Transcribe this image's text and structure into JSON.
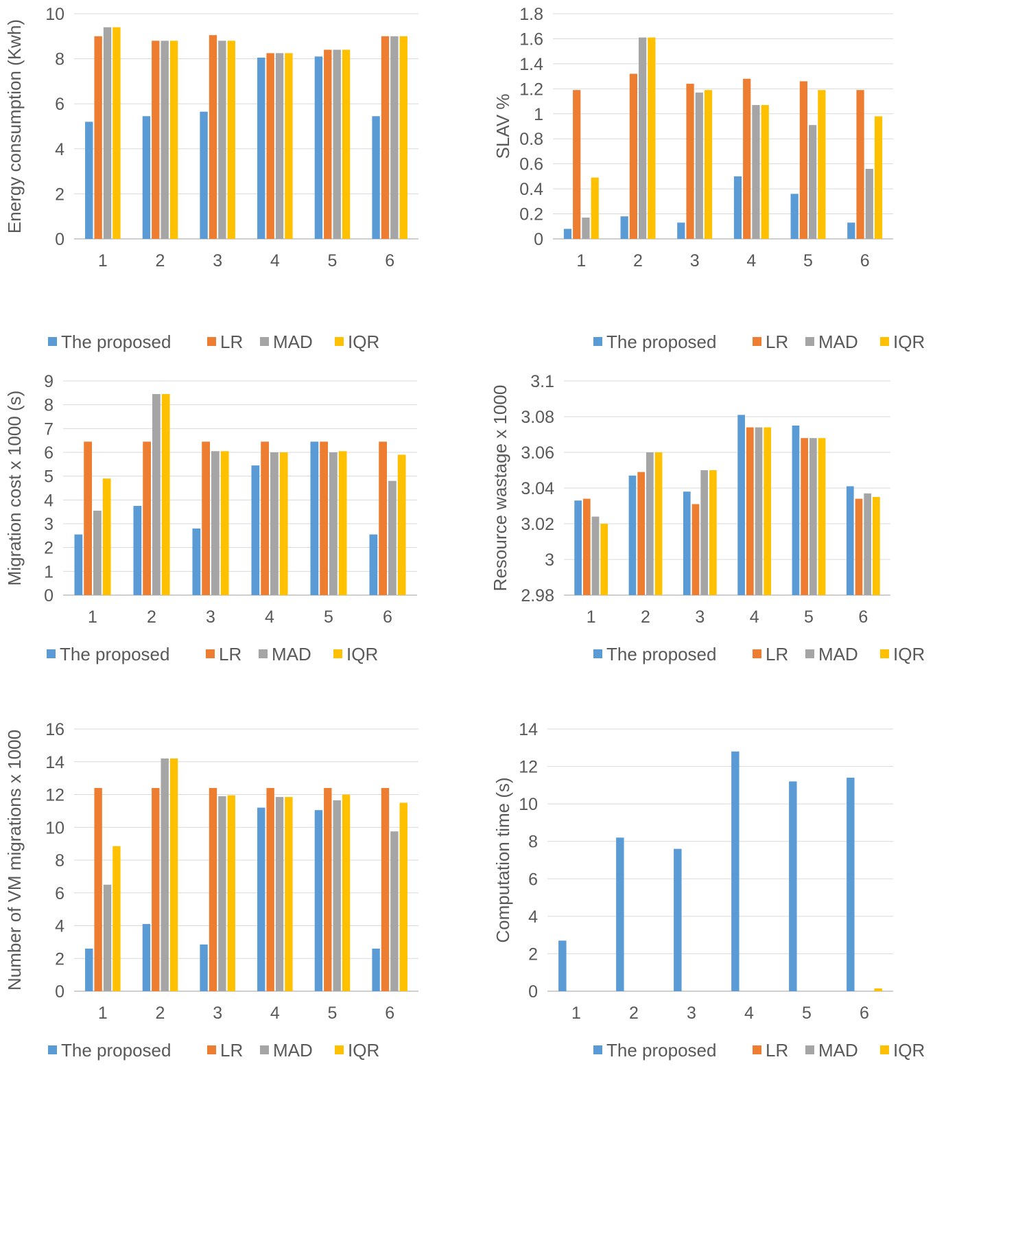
{
  "legend": [
    "The proposed",
    "LR",
    "MAD",
    "IQR"
  ],
  "colors": {
    "The proposed": "#5B9BD5",
    "LR": "#ED7D31",
    "MAD": "#A5A5A5",
    "IQR": "#FFC000"
  },
  "chart_data": [
    {
      "type": "bar",
      "title": "",
      "xlabel": "",
      "ylabel": "Energy consumption (Kwh)",
      "ylim": [
        0,
        10
      ],
      "yticks": [
        "0",
        "2",
        "4",
        "6",
        "8",
        "10"
      ],
      "categories": [
        "1",
        "2",
        "3",
        "4",
        "5",
        "6"
      ],
      "legend_position": "bottom",
      "series": [
        {
          "name": "The proposed",
          "values": [
            5.2,
            5.45,
            5.65,
            8.05,
            8.1,
            5.45
          ]
        },
        {
          "name": "LR",
          "values": [
            9.0,
            8.8,
            9.05,
            8.25,
            8.4,
            9.0
          ]
        },
        {
          "name": "MAD",
          "values": [
            9.4,
            8.8,
            8.8,
            8.25,
            8.4,
            9.0
          ]
        },
        {
          "name": "IQR",
          "values": [
            9.4,
            8.8,
            8.8,
            8.25,
            8.4,
            9.0
          ]
        }
      ]
    },
    {
      "type": "bar",
      "title": "",
      "xlabel": "",
      "ylabel": "SLAV %",
      "ylim": [
        0,
        1.8
      ],
      "yticks": [
        "0",
        "0.2",
        "0.4",
        "0.6",
        "0.8",
        "1",
        "1.2",
        "1.4",
        "1.6",
        "1.8"
      ],
      "categories": [
        "1",
        "2",
        "3",
        "4",
        "5",
        "6"
      ],
      "legend_position": "bottom",
      "series": [
        {
          "name": "The proposed",
          "values": [
            0.08,
            0.18,
            0.13,
            0.5,
            0.36,
            0.13
          ]
        },
        {
          "name": "LR",
          "values": [
            1.19,
            1.32,
            1.24,
            1.28,
            1.26,
            1.19
          ]
        },
        {
          "name": "MAD",
          "values": [
            0.17,
            1.61,
            1.17,
            1.07,
            0.91,
            0.56
          ]
        },
        {
          "name": "IQR",
          "values": [
            0.49,
            1.61,
            1.19,
            1.07,
            1.19,
            0.98
          ]
        }
      ]
    },
    {
      "type": "bar",
      "title": "",
      "xlabel": "",
      "ylabel": "Migration cost x 1000 (s)",
      "ylim": [
        0,
        9
      ],
      "yticks": [
        "0",
        "1",
        "2",
        "3",
        "4",
        "5",
        "6",
        "7",
        "8",
        "9"
      ],
      "categories": [
        "1",
        "2",
        "3",
        "4",
        "5",
        "6"
      ],
      "legend_position": "bottom",
      "series": [
        {
          "name": "The proposed",
          "values": [
            2.55,
            3.75,
            2.8,
            5.45,
            6.45,
            2.55
          ]
        },
        {
          "name": "LR",
          "values": [
            6.45,
            6.45,
            6.45,
            6.45,
            6.45,
            6.45
          ]
        },
        {
          "name": "MAD",
          "values": [
            3.55,
            8.45,
            6.05,
            6.0,
            6.0,
            4.8
          ]
        },
        {
          "name": "IQR",
          "values": [
            4.9,
            8.45,
            6.05,
            6.0,
            6.05,
            5.9
          ]
        }
      ]
    },
    {
      "type": "bar",
      "title": "",
      "xlabel": "",
      "ylabel": "Resource wastage x 1000",
      "ylim": [
        2.98,
        3.1
      ],
      "yticks": [
        "2.98",
        "3",
        "3.02",
        "3.04",
        "3.06",
        "3.08",
        "3.1"
      ],
      "categories": [
        "1",
        "2",
        "3",
        "4",
        "5",
        "6"
      ],
      "legend_position": "bottom",
      "series": [
        {
          "name": "The proposed",
          "values": [
            3.033,
            3.047,
            3.038,
            3.081,
            3.075,
            3.041
          ]
        },
        {
          "name": "LR",
          "values": [
            3.034,
            3.049,
            3.031,
            3.074,
            3.068,
            3.034
          ]
        },
        {
          "name": "MAD",
          "values": [
            3.024,
            3.06,
            3.05,
            3.074,
            3.068,
            3.037
          ]
        },
        {
          "name": "IQR",
          "values": [
            3.02,
            3.06,
            3.05,
            3.074,
            3.068,
            3.035
          ]
        }
      ]
    },
    {
      "type": "bar",
      "title": "",
      "xlabel": "",
      "ylabel": "Number of VM migrations x 1000",
      "ylim": [
        0,
        16
      ],
      "yticks": [
        "0",
        "2",
        "4",
        "6",
        "8",
        "10",
        "12",
        "14",
        "16"
      ],
      "categories": [
        "1",
        "2",
        "3",
        "4",
        "5",
        "6"
      ],
      "legend_position": "bottom",
      "series": [
        {
          "name": "The proposed",
          "values": [
            2.6,
            4.1,
            2.85,
            11.2,
            11.05,
            2.6
          ]
        },
        {
          "name": "LR",
          "values": [
            12.4,
            12.4,
            12.4,
            12.4,
            12.4,
            12.4
          ]
        },
        {
          "name": "MAD",
          "values": [
            6.5,
            14.2,
            11.9,
            11.85,
            11.65,
            9.75
          ]
        },
        {
          "name": "IQR",
          "values": [
            8.85,
            14.2,
            11.95,
            11.85,
            12.0,
            11.5
          ]
        }
      ]
    },
    {
      "type": "bar",
      "title": "",
      "xlabel": "",
      "ylabel": "Computation time (s)",
      "ylim": [
        0,
        14
      ],
      "yticks": [
        "0",
        "2",
        "4",
        "6",
        "8",
        "10",
        "12",
        "14"
      ],
      "categories": [
        "1",
        "2",
        "3",
        "4",
        "5",
        "6"
      ],
      "legend_position": "bottom",
      "series": [
        {
          "name": "The proposed",
          "values": [
            2.7,
            8.2,
            7.6,
            12.8,
            11.2,
            11.4
          ]
        },
        {
          "name": "LR",
          "values": [
            0,
            0,
            0,
            0,
            0,
            0
          ]
        },
        {
          "name": "MAD",
          "values": [
            0,
            0,
            0,
            0,
            0,
            0
          ]
        },
        {
          "name": "IQR",
          "values": [
            0,
            0,
            0,
            0,
            0,
            0.15
          ]
        }
      ]
    }
  ]
}
